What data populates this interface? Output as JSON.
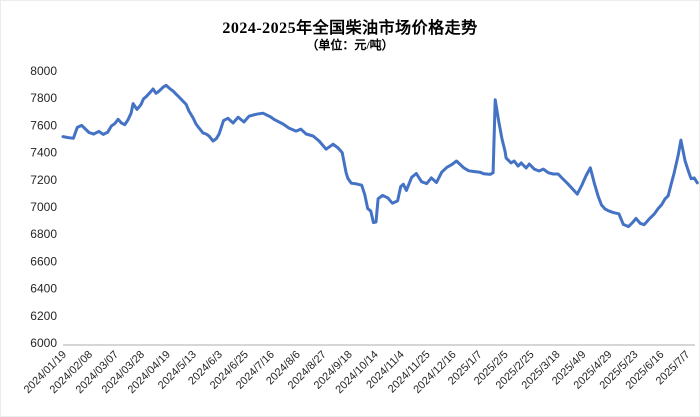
{
  "chart_data": {
    "type": "line",
    "title": "2024-2025年全国柴油市场价格走势",
    "subtitle": "（单位：元/吨）",
    "unit": "元/吨",
    "ylabel": "",
    "xlabel": "",
    "ylim": [
      6000,
      8000
    ],
    "y_ticks": [
      6000,
      6200,
      6400,
      6600,
      6800,
      7000,
      7200,
      7400,
      7600,
      7800,
      8000
    ],
    "grid": false,
    "legend_position": "none",
    "x_labels": [
      "2024/01/19",
      "2024/02/08",
      "2024/03/07",
      "2024/03/28",
      "2024/04/19",
      "2024/5/13",
      "2024/6/3",
      "2024/6/25",
      "2024/7/16",
      "2024/8/6",
      "2024/8/27",
      "2024/9/18",
      "2024/10/14",
      "2024/11/4",
      "2024/11/25",
      "2024/12/16",
      "2025/1/7",
      "2025/2/5",
      "2025/2/25",
      "2025/3/18",
      "2025/4/9",
      "2025/4/29",
      "2025/5/23",
      "2025/6/16",
      "2025/7/7"
    ],
    "points_note": "each point = [position in x-label units 0-24, price in yuan/ton]",
    "points": [
      [
        0.0,
        7518
      ],
      [
        0.2,
        7510
      ],
      [
        0.4,
        7505
      ],
      [
        0.55,
        7585
      ],
      [
        0.72,
        7600
      ],
      [
        0.88,
        7570
      ],
      [
        1.0,
        7548
      ],
      [
        1.18,
        7536
      ],
      [
        1.38,
        7556
      ],
      [
        1.55,
        7534
      ],
      [
        1.72,
        7550
      ],
      [
        1.86,
        7595
      ],
      [
        2.0,
        7615
      ],
      [
        2.12,
        7645
      ],
      [
        2.25,
        7618
      ],
      [
        2.38,
        7605
      ],
      [
        2.5,
        7640
      ],
      [
        2.62,
        7690
      ],
      [
        2.7,
        7760
      ],
      [
        2.85,
        7718
      ],
      [
        3.0,
        7752
      ],
      [
        3.1,
        7795
      ],
      [
        3.22,
        7815
      ],
      [
        3.35,
        7842
      ],
      [
        3.47,
        7868
      ],
      [
        3.58,
        7836
      ],
      [
        3.7,
        7852
      ],
      [
        3.85,
        7880
      ],
      [
        3.97,
        7895
      ],
      [
        4.1,
        7872
      ],
      [
        4.24,
        7852
      ],
      [
        4.35,
        7830
      ],
      [
        4.47,
        7808
      ],
      [
        4.62,
        7778
      ],
      [
        4.74,
        7755
      ],
      [
        4.85,
        7705
      ],
      [
        5.01,
        7655
      ],
      [
        5.12,
        7610
      ],
      [
        5.24,
        7580
      ],
      [
        5.39,
        7545
      ],
      [
        5.51,
        7537
      ],
      [
        5.62,
        7522
      ],
      [
        5.78,
        7485
      ],
      [
        5.9,
        7502
      ],
      [
        6.01,
        7537
      ],
      [
        6.18,
        7635
      ],
      [
        6.35,
        7652
      ],
      [
        6.55,
        7618
      ],
      [
        6.74,
        7660
      ],
      [
        6.97,
        7625
      ],
      [
        7.16,
        7668
      ],
      [
        7.45,
        7682
      ],
      [
        7.7,
        7690
      ],
      [
        8.0,
        7662
      ],
      [
        8.12,
        7645
      ],
      [
        8.47,
        7610
      ],
      [
        8.7,
        7580
      ],
      [
        8.97,
        7558
      ],
      [
        9.16,
        7572
      ],
      [
        9.36,
        7537
      ],
      [
        9.63,
        7522
      ],
      [
        9.86,
        7485
      ],
      [
        10.13,
        7425
      ],
      [
        10.4,
        7462
      ],
      [
        10.59,
        7434
      ],
      [
        10.75,
        7400
      ],
      [
        10.9,
        7252
      ],
      [
        10.97,
        7210
      ],
      [
        11.1,
        7175
      ],
      [
        11.3,
        7170
      ],
      [
        11.5,
        7160
      ],
      [
        11.62,
        7090
      ],
      [
        11.73,
        6988
      ],
      [
        11.85,
        6970
      ],
      [
        11.95,
        6885
      ],
      [
        12.05,
        6890
      ],
      [
        12.13,
        7060
      ],
      [
        12.3,
        7085
      ],
      [
        12.5,
        7068
      ],
      [
        12.68,
        7028
      ],
      [
        12.88,
        7045
      ],
      [
        13.0,
        7150
      ],
      [
        13.1,
        7168
      ],
      [
        13.22,
        7122
      ],
      [
        13.42,
        7218
      ],
      [
        13.6,
        7246
      ],
      [
        13.8,
        7186
      ],
      [
        14.0,
        7172
      ],
      [
        14.18,
        7214
      ],
      [
        14.38,
        7180
      ],
      [
        14.58,
        7256
      ],
      [
        14.78,
        7292
      ],
      [
        14.97,
        7312
      ],
      [
        15.15,
        7338
      ],
      [
        15.42,
        7290
      ],
      [
        15.62,
        7266
      ],
      [
        15.85,
        7260
      ],
      [
        16.05,
        7256
      ],
      [
        16.2,
        7244
      ],
      [
        16.45,
        7240
      ],
      [
        16.56,
        7252
      ],
      [
        16.64,
        7788
      ],
      [
        16.77,
        7635
      ],
      [
        16.9,
        7500
      ],
      [
        17.02,
        7408
      ],
      [
        17.06,
        7360
      ],
      [
        17.25,
        7324
      ],
      [
        17.37,
        7338
      ],
      [
        17.52,
        7301
      ],
      [
        17.64,
        7324
      ],
      [
        17.83,
        7287
      ],
      [
        17.95,
        7316
      ],
      [
        18.14,
        7279
      ],
      [
        18.33,
        7265
      ],
      [
        18.49,
        7279
      ],
      [
        18.68,
        7252
      ],
      [
        18.87,
        7243
      ],
      [
        19.06,
        7243
      ],
      [
        19.25,
        7206
      ],
      [
        19.45,
        7168
      ],
      [
        19.63,
        7130
      ],
      [
        19.8,
        7095
      ],
      [
        19.97,
        7158
      ],
      [
        20.13,
        7228
      ],
      [
        20.3,
        7288
      ],
      [
        20.45,
        7178
      ],
      [
        20.6,
        7080
      ],
      [
        20.73,
        7015
      ],
      [
        20.87,
        6985
      ],
      [
        21.0,
        6972
      ],
      [
        21.2,
        6958
      ],
      [
        21.4,
        6950
      ],
      [
        21.57,
        6872
      ],
      [
        21.77,
        6856
      ],
      [
        21.93,
        6886
      ],
      [
        22.06,
        6916
      ],
      [
        22.22,
        6880
      ],
      [
        22.37,
        6870
      ],
      [
        22.56,
        6910
      ],
      [
        22.76,
        6948
      ],
      [
        22.92,
        6990
      ],
      [
        23.05,
        7018
      ],
      [
        23.18,
        7060
      ],
      [
        23.3,
        7082
      ],
      [
        23.42,
        7172
      ],
      [
        23.53,
        7252
      ],
      [
        23.68,
        7378
      ],
      [
        23.79,
        7492
      ],
      [
        23.95,
        7338
      ],
      [
        24.08,
        7262
      ],
      [
        24.18,
        7208
      ],
      [
        24.3,
        7214
      ],
      [
        24.42,
        7178
      ]
    ]
  },
  "colors": {
    "line": "#4472C4",
    "axis_line": "#C9C9C9",
    "tick_text": "#262626",
    "title_text": "#000000",
    "background": "#FFFFFF"
  }
}
